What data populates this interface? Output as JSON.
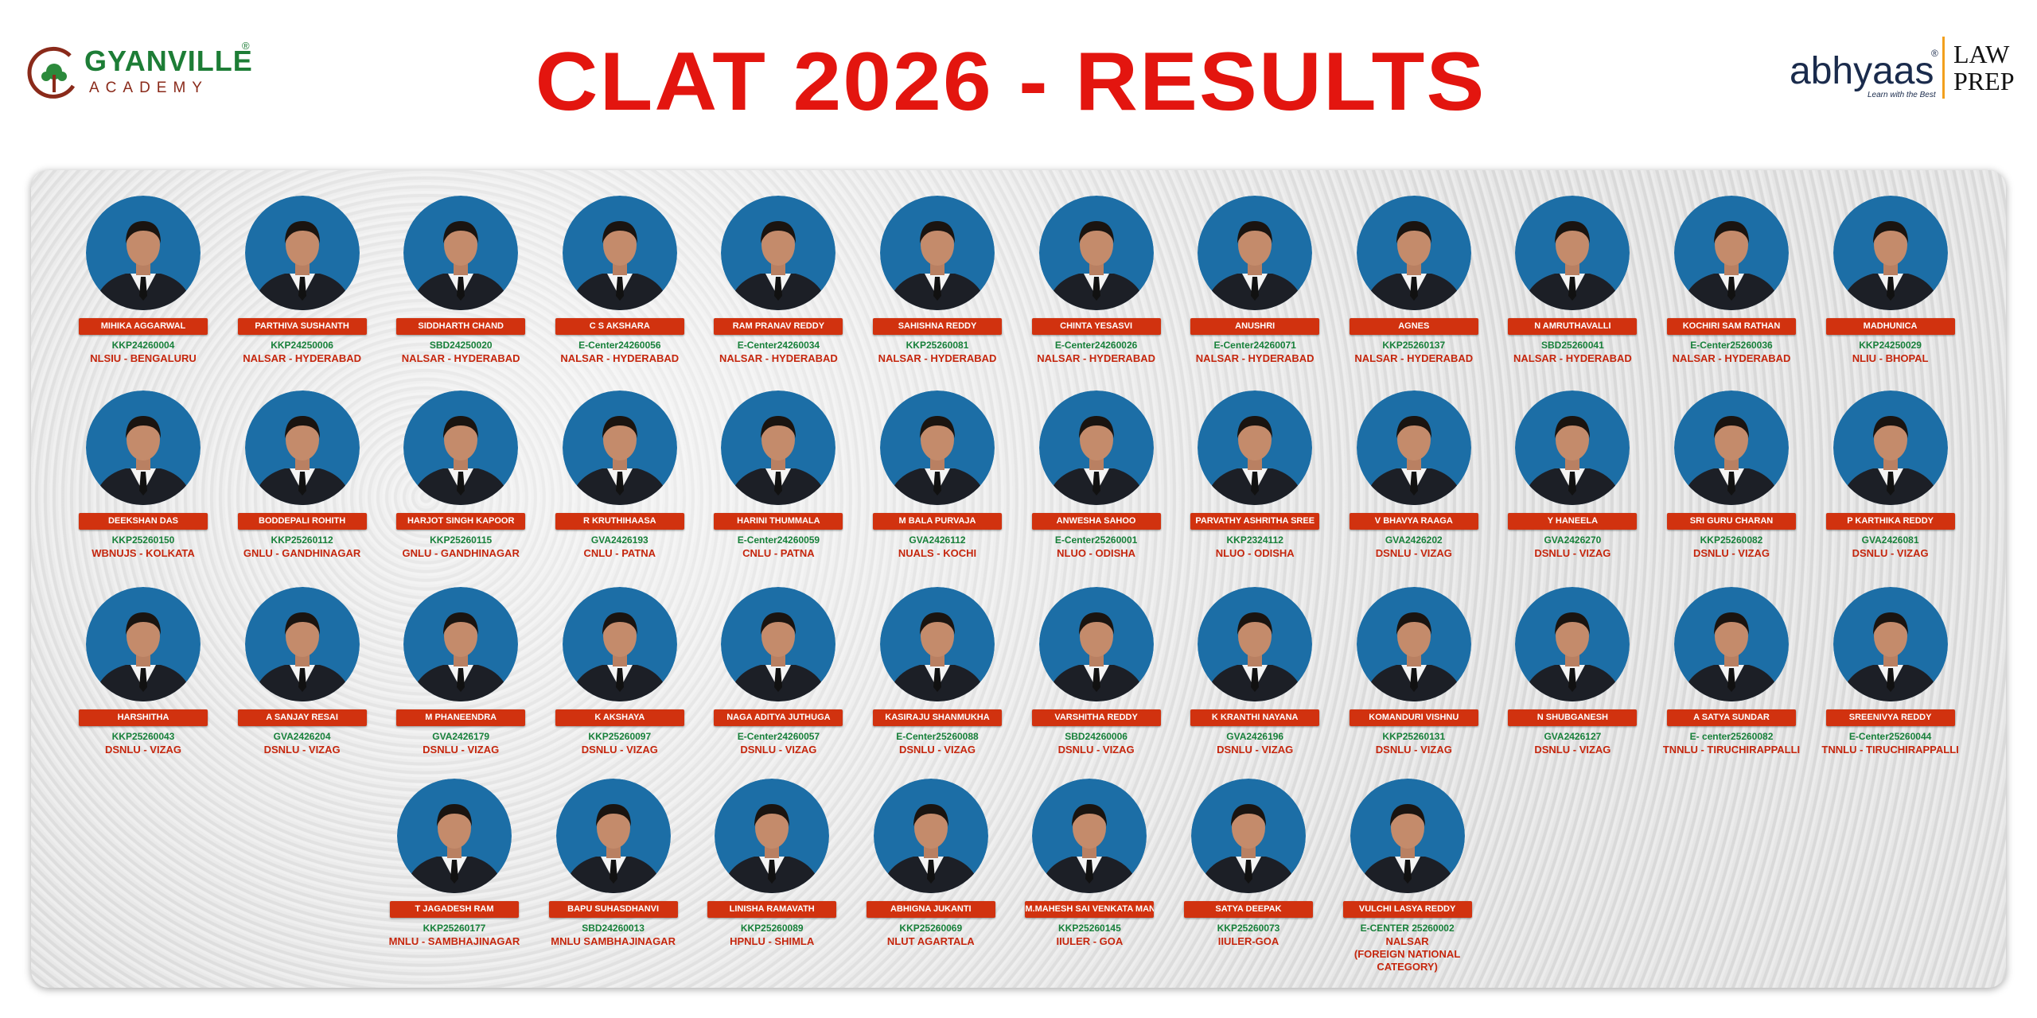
{
  "header": {
    "logo_name": "GYANVILLE",
    "logo_mark": "®",
    "logo_sub": "ACADEMY",
    "title": "CLAT 2026 - RESULTS",
    "partner_name": "abhyaas",
    "partner_mark": "®",
    "partner_tagline": "Learn with the Best",
    "partner_law": "LAW",
    "partner_prep": "PREP"
  },
  "students": [
    {
      "name": "MIHIKA AGGARWAL",
      "code": "KKP24260004",
      "college": "NLSIU - BENGALURU"
    },
    {
      "name": "PARTHIVA SUSHANTH",
      "code": "KKP24250006",
      "college": "NALSAR - HYDERABAD"
    },
    {
      "name": "SIDDHARTH CHAND",
      "code": "SBD24250020",
      "college": "NALSAR - HYDERABAD"
    },
    {
      "name": "C S AKSHARA",
      "code": "E-Center24260056",
      "college": "NALSAR - HYDERABAD"
    },
    {
      "name": "RAM PRANAV REDDY",
      "code": "E-Center24260034",
      "college": "NALSAR - HYDERABAD"
    },
    {
      "name": "SAHISHNA REDDY",
      "code": "KKP25260081",
      "college": "NALSAR - HYDERABAD"
    },
    {
      "name": "CHINTA YESASVI",
      "code": "E-Center24260026",
      "college": "NALSAR - HYDERABAD"
    },
    {
      "name": "ANUSHRI",
      "code": "E-Center24260071",
      "college": "NALSAR - HYDERABAD"
    },
    {
      "name": "AGNES",
      "code": "KKP25260137",
      "college": "NALSAR - HYDERABAD"
    },
    {
      "name": "N AMRUTHAVALLI",
      "code": "SBD25260041",
      "college": "NALSAR - HYDERABAD"
    },
    {
      "name": "KOCHIRI SAM  RATHAN",
      "code": "E-Center25260036",
      "college": "NALSAR - HYDERABAD"
    },
    {
      "name": "MADHUNICA",
      "code": "KKP24250029",
      "college": "NLIU - BHOPAL"
    },
    {
      "name": "DEEKSHAN DAS",
      "code": "KKP25260150",
      "college": "WBNUJS - KOLKATA"
    },
    {
      "name": "BODDEPALI ROHITH",
      "code": "KKP25260112",
      "college": "GNLU - GANDHINAGAR"
    },
    {
      "name": "HARJOT SINGH KAPOOR",
      "code": "KKP25260115",
      "college": "GNLU - GANDHINAGAR"
    },
    {
      "name": "R KRUTHIHAASA",
      "code": "GVA2426193",
      "college": "CNLU - PATNA"
    },
    {
      "name": "HARINI THUMMALA",
      "code": "E-Center24260059",
      "college": "CNLU - PATNA"
    },
    {
      "name": "M BALA PURVAJA",
      "code": "GVA2426112",
      "college": "NUALS - KOCHI"
    },
    {
      "name": "ANWESHA SAHOO",
      "code": "E-Center25260001",
      "college": "NLUO - ODISHA"
    },
    {
      "name": "PARVATHY ASHRITHA SREE",
      "code": "KKP2324112",
      "college": "NLUO - ODISHA"
    },
    {
      "name": "V BHAVYA RAAGA",
      "code": "GVA2426202",
      "college": "DSNLU - VIZAG"
    },
    {
      "name": "Y HANEELA",
      "code": "GVA2426270",
      "college": "DSNLU - VIZAG"
    },
    {
      "name": "SRI GURU CHARAN",
      "code": "KKP25260082",
      "college": "DSNLU - VIZAG"
    },
    {
      "name": "P KARTHIKA REDDY",
      "code": "GVA2426081",
      "college": "DSNLU - VIZAG"
    },
    {
      "name": "HARSHITHA",
      "code": "KKP25260043",
      "college": "DSNLU - VIZAG"
    },
    {
      "name": "A SANJAY RESAI",
      "code": "GVA2426204",
      "college": "DSNLU - VIZAG"
    },
    {
      "name": "M PHANEENDRA",
      "code": "GVA2426179",
      "college": "DSNLU - VIZAG"
    },
    {
      "name": "K AKSHAYA",
      "code": "KKP25260097",
      "college": "DSNLU - VIZAG"
    },
    {
      "name": "NAGA ADITYA JUTHUGA",
      "code": "E-Center24260057",
      "college": "DSNLU - VIZAG"
    },
    {
      "name": "KASIRAJU SHANMUKHA",
      "code": "E-Center25260088",
      "college": "DSNLU - VIZAG"
    },
    {
      "name": "VARSHITHA REDDY",
      "code": "SBD24260006",
      "college": "DSNLU - VIZAG"
    },
    {
      "name": "K KRANTHI NAYANA",
      "code": "GVA2426196",
      "college": "DSNLU - VIZAG"
    },
    {
      "name": "KOMANDURI VISHNU",
      "code": "KKP25260131",
      "college": "DSNLU - VIZAG"
    },
    {
      "name": "N SHUBGANESH",
      "code": "GVA2426127",
      "college": "DSNLU - VIZAG"
    },
    {
      "name": "A SATYA SUNDAR",
      "code": "E- center25260082",
      "college": "TNNLU - TIRUCHIRAPPALLI"
    },
    {
      "name": "SREENIVYA REDDY",
      "code": "E-Center25260044",
      "college": "TNNLU - TIRUCHIRAPPALLI"
    },
    {
      "name": "T JAGADESH RAM",
      "code": "KKP25260177",
      "college": "MNLU - SAMBHAJINAGAR"
    },
    {
      "name": "BAPU SUHASDHANVI",
      "code": "SBD24260013",
      "college": "MNLU SAMBHAJINAGAR"
    },
    {
      "name": "LINISHA RAMAVATH",
      "code": "KKP25260089",
      "college": "HPNLU - SHIMLA"
    },
    {
      "name": "ABHIGNA JUKANTI",
      "code": "KKP25260069",
      "college": "NLUT AGARTALA"
    },
    {
      "name": "M.MAHESH SAI VENKATA MANOHAR",
      "code": "KKP25260145",
      "college": "IIULER - GOA"
    },
    {
      "name": "SATYA DEEPAK",
      "code": "KKP25260073",
      "college": "IIULER-GOA"
    },
    {
      "name": "VULCHI LASYA REDDY",
      "code": "E-CENTER 25260002",
      "college": "NALSAR\n(FOREIGN NATIONAL CATEGORY)"
    }
  ]
}
